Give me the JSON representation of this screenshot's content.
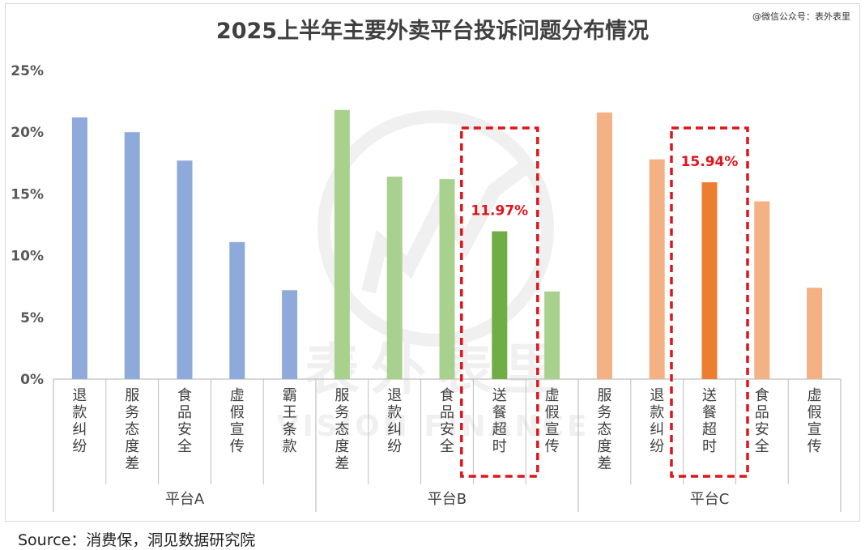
{
  "chart_data": {
    "type": "bar",
    "title": "2025上半年主要外卖平台投诉问题分布情况",
    "watermark_credit": "@微信公众号：表外表里",
    "watermark_brand": "表外表里",
    "watermark_brand_en": "VISION FINANCE",
    "source": "Source：消费保，洞见数据研究院",
    "ylim": [
      0,
      25
    ],
    "y_ticks": [
      0,
      5,
      10,
      15,
      20,
      25
    ],
    "y_tick_labels": [
      "0%",
      "5%",
      "10%",
      "15%",
      "20%",
      "25%"
    ],
    "grid": false,
    "groups": [
      {
        "name": "平台A",
        "base_color": "#8eaadb",
        "highlight_color": "#8eaadb",
        "categories": [
          "退款纠纷",
          "服务态度差",
          "食品安全",
          "虚假宣传",
          "霸王条款"
        ],
        "values": [
          21.2,
          20.0,
          17.7,
          11.1,
          7.2
        ],
        "highlight_index": -1,
        "highlight_label": ""
      },
      {
        "name": "平台B",
        "base_color": "#a9d18e",
        "highlight_color": "#70ad47",
        "categories": [
          "服务态度差",
          "退款纠纷",
          "食品安全",
          "送餐超时",
          "虚假宣传"
        ],
        "values": [
          21.8,
          16.4,
          16.2,
          11.97,
          7.1
        ],
        "highlight_index": 3,
        "highlight_label": "11.97%"
      },
      {
        "name": "平台C",
        "base_color": "#f4b183",
        "highlight_color": "#ed7d31",
        "categories": [
          "服务态度差",
          "退款纠纷",
          "送餐超时",
          "食品安全",
          "虚假宣传"
        ],
        "values": [
          21.6,
          17.8,
          15.94,
          14.4,
          7.4
        ],
        "highlight_index": 2,
        "highlight_label": "15.94%"
      }
    ],
    "annotation_color": "#e0141b"
  }
}
